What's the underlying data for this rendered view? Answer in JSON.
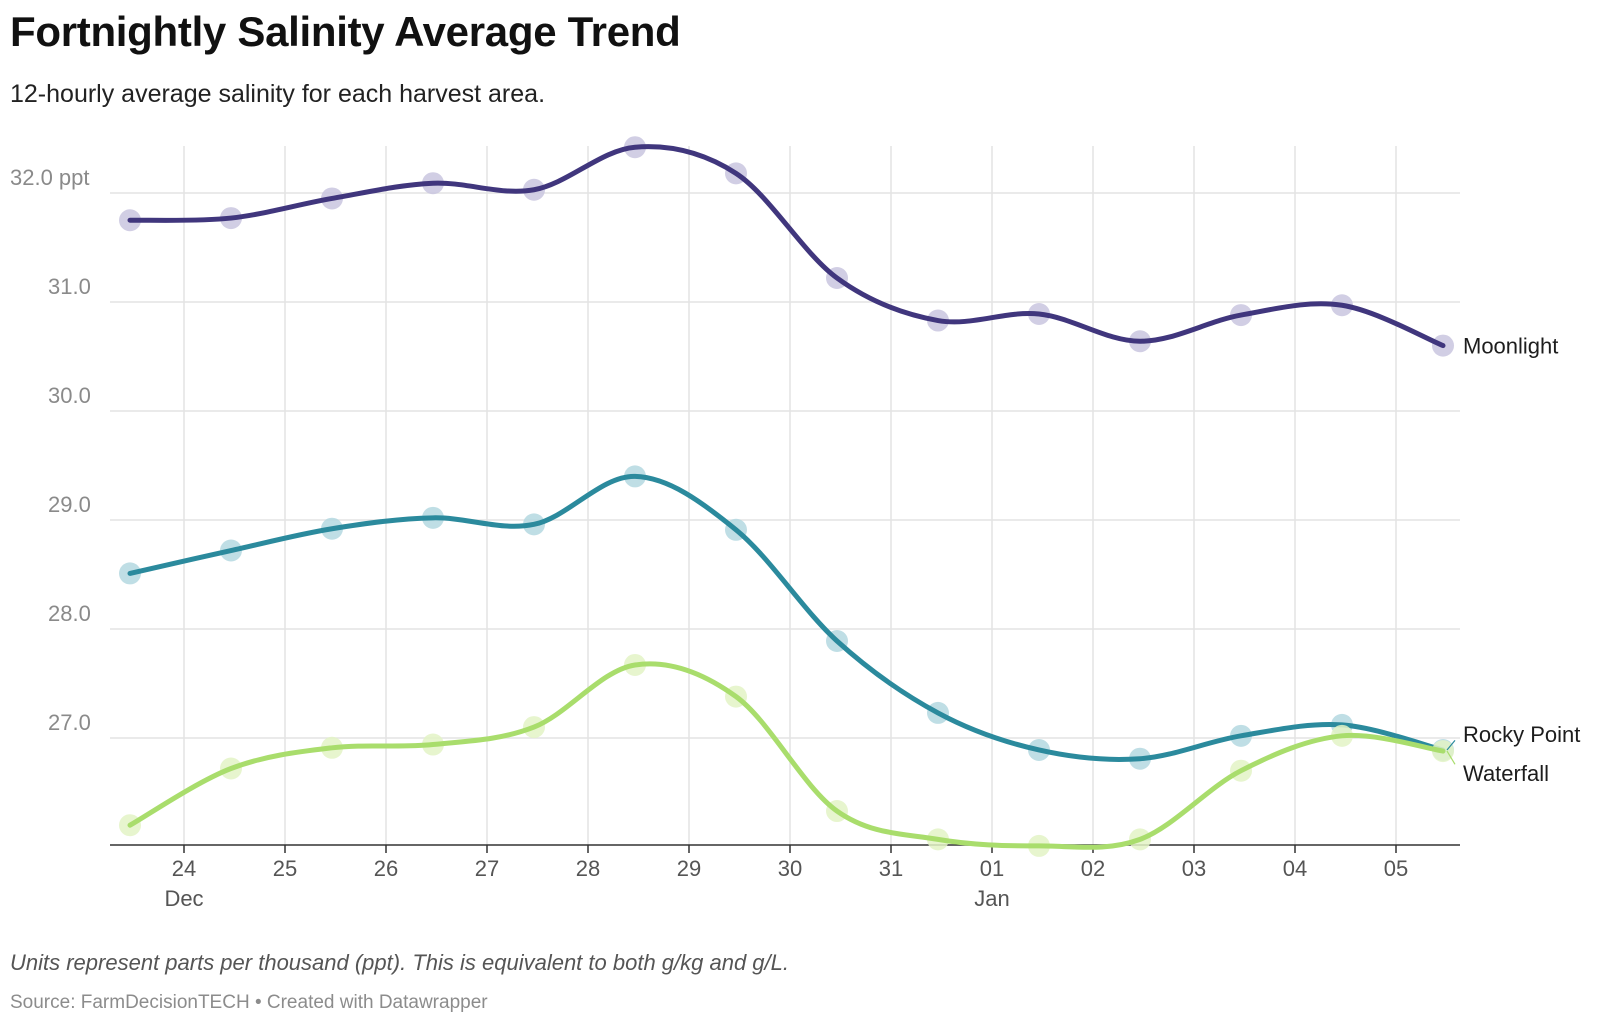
{
  "header": {
    "title": "Fortnightly Salinity Average Trend",
    "subtitle": "12-hourly average salinity for each harvest area."
  },
  "footer": {
    "notes": "Units represent parts per thousand (ppt). This is equivalent to both g/kg and g/L.",
    "source": "Source: FarmDecisionTECH • Created with Datawrapper"
  },
  "chart_data": {
    "type": "line",
    "title": "Fortnightly Salinity Average Trend",
    "subtitle": "12-hourly average salinity for each harvest area.",
    "x_unit": "date",
    "x": [
      "Dec 23",
      "Dec 24",
      "Dec 25",
      "Dec 26",
      "Dec 27",
      "Dec 28",
      "Dec 29",
      "Dec 30",
      "Dec 31",
      "Jan 01",
      "Jan 02",
      "Jan 03",
      "Jan 04",
      "Jan 05"
    ],
    "x_ticks": [
      {
        "label": "24",
        "sub": "Dec"
      },
      {
        "label": "25",
        "sub": ""
      },
      {
        "label": "26",
        "sub": ""
      },
      {
        "label": "27",
        "sub": ""
      },
      {
        "label": "28",
        "sub": ""
      },
      {
        "label": "29",
        "sub": ""
      },
      {
        "label": "30",
        "sub": ""
      },
      {
        "label": "31",
        "sub": ""
      },
      {
        "label": "01",
        "sub": "Jan"
      },
      {
        "label": "02",
        "sub": ""
      },
      {
        "label": "03",
        "sub": ""
      },
      {
        "label": "04",
        "sub": ""
      },
      {
        "label": "05",
        "sub": ""
      }
    ],
    "y_ticks": [
      {
        "value": 27,
        "label": "27.0"
      },
      {
        "value": 28,
        "label": "28.0"
      },
      {
        "value": 29,
        "label": "29.0"
      },
      {
        "value": 30,
        "label": "30.0"
      },
      {
        "value": 31,
        "label": "31.0"
      },
      {
        "value": 32,
        "label": "32.0 ppt"
      }
    ],
    "ylim": [
      26.0,
      32.5
    ],
    "grid": true,
    "legend": "direct labels at line ends",
    "series": [
      {
        "name": "Moonlight",
        "color": "#40367d",
        "dot_color": "#c9c5df",
        "values": [
          31.75,
          31.77,
          31.95,
          32.09,
          32.03,
          32.42,
          32.18,
          31.22,
          30.83,
          30.89,
          30.64,
          30.88,
          30.97,
          30.6
        ]
      },
      {
        "name": "Rocky Point",
        "color": "#2b8a9d",
        "dot_color": "#b4d8e1",
        "values": [
          28.51,
          28.72,
          28.92,
          29.02,
          28.96,
          29.4,
          28.91,
          27.89,
          27.23,
          26.89,
          26.81,
          27.02,
          27.12,
          26.89
        ]
      },
      {
        "name": "Waterfall",
        "color": "#a9dd6c",
        "dot_color": "#e3f3c6",
        "values": [
          26.2,
          26.72,
          26.91,
          26.94,
          27.1,
          27.67,
          27.38,
          26.33,
          26.07,
          26.01,
          26.07,
          26.7,
          27.02,
          26.88
        ]
      }
    ]
  }
}
